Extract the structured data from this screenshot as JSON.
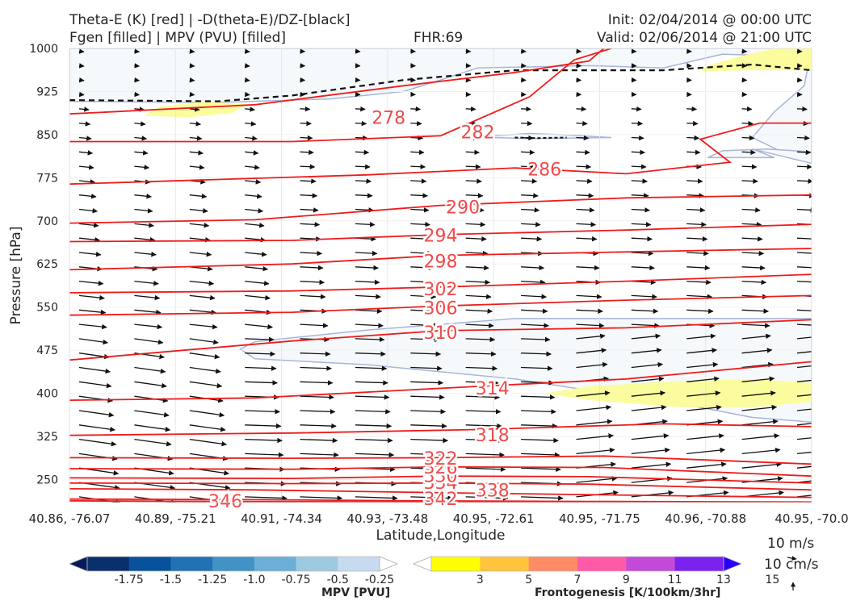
{
  "header": {
    "title_left_1": "Theta-E (K) [red] | -D(theta-E)/DZ-[black]",
    "title_left_2": "Fgen [filled] | MPV (PVU) [filled]",
    "fhr": "FHR:69",
    "init": "Init: 02/04/2014 @ 00:00 UTC",
    "valid": "Valid: 02/06/2014 @ 21:00 UTC"
  },
  "chart_data": {
    "type": "cross-section",
    "xlabel": "Latitude,Longitude",
    "ylabel": "Pressure [hPa]",
    "x_tick_labels": [
      "40.86, -76.07",
      "40.89, -75.21",
      "40.91, -74.34",
      "40.93, -73.48",
      "40.95, -72.61",
      "40.95, -71.75",
      "40.96, -70.88",
      "40.95, -70.0"
    ],
    "y_ticks": [
      250,
      325,
      400,
      475,
      550,
      625,
      700,
      775,
      850,
      925,
      1000
    ],
    "ylim": [
      1000,
      210
    ],
    "theta_e_contours": [
      {
        "label": "346",
        "points": [
          [
            0,
            213
          ],
          [
            20,
            212
          ],
          [
            50,
            211
          ],
          [
            100,
            210
          ]
        ]
      },
      {
        "label": "342",
        "points": [
          [
            0,
            216
          ],
          [
            25,
            215
          ],
          [
            48,
            213
          ],
          [
            70,
            212
          ],
          [
            100,
            211
          ]
        ]
      },
      {
        "label": "338",
        "points": [
          [
            0,
            234
          ],
          [
            25,
            232
          ],
          [
            56,
            226
          ],
          [
            80,
            222
          ],
          [
            100,
            219
          ]
        ]
      },
      {
        "label": "334",
        "points": [
          [
            0,
            244
          ],
          [
            30,
            243
          ],
          [
            50,
            244
          ],
          [
            70,
            242
          ],
          [
            100,
            232
          ]
        ]
      },
      {
        "label": "330",
        "points": [
          [
            0,
            253
          ],
          [
            30,
            252
          ],
          [
            50,
            256
          ],
          [
            70,
            255
          ],
          [
            100,
            244
          ]
        ]
      },
      {
        "label": "326",
        "points": [
          [
            0,
            269
          ],
          [
            30,
            268
          ],
          [
            50,
            272
          ],
          [
            72,
            271
          ],
          [
            100,
            256
          ]
        ]
      },
      {
        "label": "322",
        "points": [
          [
            0,
            288
          ],
          [
            30,
            287
          ],
          [
            50,
            288
          ],
          [
            72,
            291
          ],
          [
            100,
            277
          ]
        ]
      },
      {
        "label": "318",
        "points": [
          [
            0,
            327
          ],
          [
            30,
            331
          ],
          [
            55,
            337
          ],
          [
            80,
            347
          ],
          [
            100,
            342
          ]
        ]
      },
      {
        "label": "314",
        "points": [
          [
            0,
            388
          ],
          [
            25,
            392
          ],
          [
            55,
            412
          ],
          [
            75,
            425
          ],
          [
            100,
            455
          ]
        ]
      },
      {
        "label": "310",
        "points": [
          [
            0,
            458
          ],
          [
            30,
            491
          ],
          [
            50,
            509
          ],
          [
            75,
            514
          ],
          [
            100,
            528
          ]
        ]
      },
      {
        "label": "306",
        "points": [
          [
            0,
            536
          ],
          [
            30,
            541
          ],
          [
            50,
            552
          ],
          [
            75,
            562
          ],
          [
            100,
            570
          ]
        ]
      },
      {
        "label": "302",
        "points": [
          [
            0,
            575
          ],
          [
            30,
            578
          ],
          [
            50,
            585
          ],
          [
            75,
            595
          ],
          [
            100,
            607
          ]
        ]
      },
      {
        "label": "298",
        "points": [
          [
            0,
            615
          ],
          [
            30,
            625
          ],
          [
            50,
            640
          ],
          [
            75,
            646
          ],
          [
            100,
            652
          ]
        ]
      },
      {
        "label": "294",
        "points": [
          [
            0,
            664
          ],
          [
            30,
            666
          ],
          [
            50,
            676
          ],
          [
            75,
            684
          ],
          [
            100,
            694
          ]
        ]
      },
      {
        "label": "290",
        "points": [
          [
            0,
            696
          ],
          [
            25,
            702
          ],
          [
            50,
            727
          ],
          [
            75,
            740
          ],
          [
            100,
            745
          ]
        ]
      },
      {
        "label": "286",
        "points": [
          [
            0,
            764
          ],
          [
            40,
            780
          ],
          [
            60,
            792
          ],
          [
            75,
            782
          ],
          [
            89,
            802
          ],
          [
            85,
            842
          ],
          [
            93,
            870
          ],
          [
            100,
            870
          ]
        ]
      },
      {
        "label": "282",
        "points": [
          [
            0,
            838
          ],
          [
            30,
            838
          ],
          [
            50,
            848
          ],
          [
            62,
            916
          ],
          [
            68,
            980
          ],
          [
            73,
            1000
          ]
        ]
      },
      {
        "label": "278",
        "points": [
          [
            0,
            886
          ],
          [
            25,
            902
          ],
          [
            45,
            935
          ],
          [
            60,
            958
          ],
          [
            70,
            978
          ],
          [
            72,
            1000
          ]
        ]
      }
    ],
    "mpv_shading": {
      "color": "#f5f9fb",
      "outline": "#a8b4d8",
      "level": "-0.25 PVU"
    },
    "fgen_shading": {
      "color": "#fbfc9e",
      "level": "3-5 K/100km/3hr"
    },
    "stability_contour_style": "dashed black",
    "wind_reference": {
      "horizontal": "10 m/s",
      "vertical": "10 cm/s"
    },
    "colorbars": {
      "mpv": {
        "label": "MPV [PVU]",
        "ticks": [
          "-1.75",
          "-1.5",
          "-1.25",
          "-1.0",
          "-0.75",
          "-0.5",
          "-0.25"
        ],
        "colors": [
          "#071a5b",
          "#08306b",
          "#08519c",
          "#2171b5",
          "#4292c6",
          "#6baed6",
          "#9ecae1",
          "#c6dbef",
          "#ffffff"
        ]
      },
      "fgen": {
        "label": "Frontogenesis [K/100km/3hr]",
        "ticks": [
          "3",
          "5",
          "7",
          "9",
          "11",
          "13",
          "15"
        ],
        "colors": [
          "#ffffff",
          "#ffff00",
          "#ffc43b",
          "#ff8c66",
          "#ff5aa8",
          "#c34ad8",
          "#7b22f0",
          "#2a00ff"
        ]
      }
    }
  }
}
